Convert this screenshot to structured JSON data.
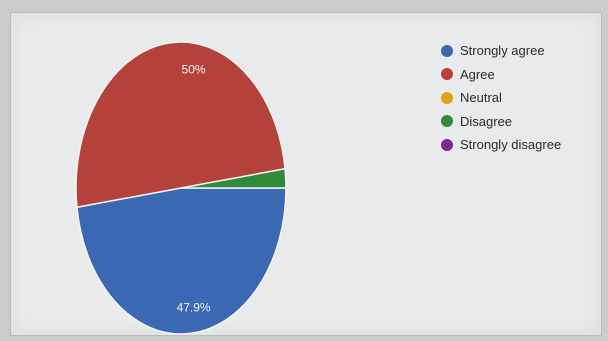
{
  "chart_data": {
    "type": "pie",
    "slices": [
      {
        "name": "Strongly agree",
        "value": 47.9,
        "label": "47.9%",
        "color": "#3b68b3"
      },
      {
        "name": "Agree",
        "value": 50,
        "label": "50%",
        "color": "#b5423a"
      },
      {
        "name": "Neutral",
        "value": 0,
        "label": "",
        "color": "#e3a21a"
      },
      {
        "name": "Disagree",
        "value": 2.1,
        "label": "",
        "color": "#2f8a3a"
      },
      {
        "name": "Strongly disagree",
        "value": 0,
        "label": "",
        "color": "#7a2a8a"
      }
    ],
    "legend_position": "right"
  }
}
